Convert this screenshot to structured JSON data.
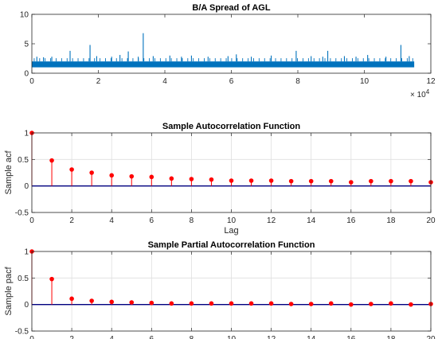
{
  "chart_data": [
    {
      "type": "line",
      "title": "B/A Spread of AGL",
      "xlabel": "",
      "ylabel": "",
      "xlim": [
        0,
        120000
      ],
      "ylim": [
        0,
        10
      ],
      "x_ticks": [
        0,
        2,
        4,
        6,
        8,
        10,
        12
      ],
      "x_tick_labels": [
        "0",
        "2",
        "4",
        "6",
        "8",
        "10",
        "12"
      ],
      "x_exponent_label": "× 10",
      "x_exponent_power": "4",
      "y_ticks": [
        0,
        5,
        10
      ],
      "y_tick_labels": [
        "0",
        "5",
        "10"
      ],
      "grid": false,
      "color": "#0072BD",
      "series": [
        {
          "x_range": [
            0,
            115000
          ],
          "baseline_band": [
            1,
            2
          ],
          "spikes": [
            {
              "x": 1500,
              "y": 2.8
            },
            {
              "x": 3500,
              "y": 2.7
            },
            {
              "x": 6000,
              "y": 2.8
            },
            {
              "x": 11500,
              "y": 3.8
            },
            {
              "x": 17500,
              "y": 4.8
            },
            {
              "x": 19500,
              "y": 2.9
            },
            {
              "x": 24000,
              "y": 2.8
            },
            {
              "x": 26500,
              "y": 3.1
            },
            {
              "x": 29000,
              "y": 3.7
            },
            {
              "x": 32000,
              "y": 2.8
            },
            {
              "x": 33500,
              "y": 6.8
            },
            {
              "x": 36500,
              "y": 2.9
            },
            {
              "x": 41500,
              "y": 3.0
            },
            {
              "x": 45000,
              "y": 2.8
            },
            {
              "x": 48000,
              "y": 3.0
            },
            {
              "x": 53000,
              "y": 2.8
            },
            {
              "x": 59000,
              "y": 2.9
            },
            {
              "x": 61500,
              "y": 3.2
            },
            {
              "x": 66000,
              "y": 2.8
            },
            {
              "x": 72000,
              "y": 3.0
            },
            {
              "x": 79500,
              "y": 3.8
            },
            {
              "x": 84000,
              "y": 2.9
            },
            {
              "x": 87500,
              "y": 2.8
            },
            {
              "x": 89000,
              "y": 3.8
            },
            {
              "x": 94000,
              "y": 2.9
            },
            {
              "x": 97500,
              "y": 2.8
            },
            {
              "x": 101000,
              "y": 3.1
            },
            {
              "x": 106500,
              "y": 2.8
            },
            {
              "x": 111000,
              "y": 4.8
            },
            {
              "x": 113500,
              "y": 2.9
            }
          ]
        }
      ]
    },
    {
      "type": "scatter",
      "title": "Sample Autocorrelation Function",
      "xlabel": "Lag",
      "ylabel": "Sample acf",
      "xlim": [
        0,
        20
      ],
      "ylim": [
        -0.5,
        1
      ],
      "x_ticks": [
        0,
        2,
        4,
        6,
        8,
        10,
        12,
        14,
        16,
        18,
        20
      ],
      "y_ticks": [
        -0.5,
        0,
        0.5,
        1
      ],
      "y_tick_labels": [
        "-0.5",
        "0",
        "0.5",
        "1"
      ],
      "grid": true,
      "stem_color": "#ff0000",
      "baseline_color": "#00007f",
      "x": [
        0,
        1,
        2,
        3,
        4,
        5,
        6,
        7,
        8,
        9,
        10,
        11,
        12,
        13,
        14,
        15,
        16,
        17,
        18,
        19,
        20
      ],
      "values": [
        1,
        0.48,
        0.31,
        0.25,
        0.2,
        0.18,
        0.17,
        0.14,
        0.13,
        0.12,
        0.1,
        0.1,
        0.1,
        0.09,
        0.09,
        0.09,
        0.07,
        0.09,
        0.09,
        0.09,
        0.07
      ]
    },
    {
      "type": "scatter",
      "title": "Sample Partial Autocorrelation Function",
      "xlabel": "Lag",
      "ylabel": "Sample pacf",
      "xlim": [
        0,
        20
      ],
      "ylim": [
        -0.5,
        1
      ],
      "x_ticks": [
        0,
        2,
        4,
        6,
        8,
        10,
        12,
        14,
        16,
        18,
        20
      ],
      "y_ticks": [
        -0.5,
        0,
        0.5,
        1
      ],
      "y_tick_labels": [
        "-0.5",
        "0",
        "0.5",
        "1"
      ],
      "grid": true,
      "stem_color": "#ff0000",
      "baseline_color": "#00007f",
      "x": [
        0,
        1,
        2,
        3,
        4,
        5,
        6,
        7,
        8,
        9,
        10,
        11,
        12,
        13,
        14,
        15,
        16,
        17,
        18,
        19,
        20
      ],
      "values": [
        1,
        0.48,
        0.11,
        0.07,
        0.05,
        0.04,
        0.03,
        0.02,
        0.02,
        0.02,
        0.02,
        0.02,
        0.02,
        0.01,
        0.01,
        0.02,
        0.0,
        0.01,
        0.02,
        0.0,
        0.01
      ]
    }
  ]
}
